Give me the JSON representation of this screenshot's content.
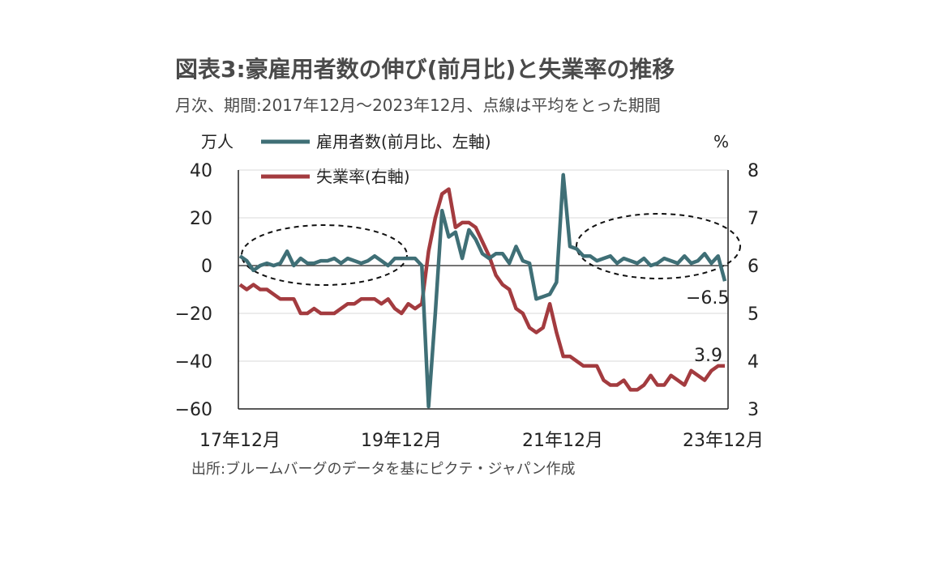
{
  "title": "図表3:豪雇用者数の伸び(前月比)と失業率の推移",
  "subtitle": "月次、期間:2017年12月～2023年12月、点線は平均をとった期間",
  "source": "出所:ブルームバーグのデータを基にピクテ・ジャパン作成",
  "colors": {
    "employment": "#3f6f76",
    "unemployment": "#a33b3f"
  },
  "chart_data": {
    "type": "line",
    "left_unit": "万人",
    "right_unit": "%",
    "x_ticks": [
      "17年12月",
      "19年12月",
      "21年12月",
      "23年12月"
    ],
    "left_axis": {
      "ylim": [
        -60,
        40
      ],
      "ticks": [
        "40",
        "20",
        "0",
        "−20",
        "−40",
        "−60"
      ]
    },
    "right_axis": {
      "ylim": [
        3,
        8
      ],
      "ticks": [
        "8",
        "7",
        "6",
        "5",
        "4",
        "3"
      ]
    },
    "legend": [
      "雇用者数(前月比、左軸)",
      "失業率(右軸)"
    ],
    "annotations": {
      "last_employment": "−6.5",
      "last_unemployment": "3.9"
    },
    "series": [
      {
        "name": "雇用者数(前月比、左軸)",
        "axis": "left",
        "values": [
          4,
          2,
          -2,
          0,
          1,
          0,
          1,
          6,
          0,
          3,
          1,
          1,
          2,
          2,
          3,
          1,
          3,
          2,
          1,
          2,
          4,
          2,
          0,
          3,
          3,
          3,
          3,
          0,
          -59,
          -20,
          23,
          12,
          14,
          3,
          15,
          11,
          5,
          3,
          5,
          5,
          1,
          8,
          2,
          1,
          -14,
          -13,
          -12,
          -7,
          38,
          8,
          7,
          4,
          4,
          2,
          3,
          4,
          1,
          3,
          2,
          1,
          3,
          0,
          1,
          3,
          2,
          1,
          4,
          1,
          2,
          5,
          1,
          4,
          -6.5
        ]
      },
      {
        "name": "失業率(右軸)",
        "axis": "right",
        "values": [
          5.6,
          5.5,
          5.6,
          5.5,
          5.5,
          5.4,
          5.3,
          5.3,
          5.3,
          5.0,
          5.0,
          5.1,
          5.0,
          5.0,
          5.0,
          5.1,
          5.2,
          5.2,
          5.3,
          5.3,
          5.3,
          5.2,
          5.3,
          5.1,
          5.0,
          5.2,
          5.1,
          5.2,
          6.3,
          7.0,
          7.5,
          7.6,
          6.8,
          6.9,
          6.9,
          6.8,
          6.5,
          6.2,
          5.8,
          5.6,
          5.5,
          5.1,
          5.0,
          4.7,
          4.6,
          4.7,
          5.2,
          4.6,
          4.1,
          4.1,
          4.0,
          3.9,
          3.9,
          3.9,
          3.6,
          3.5,
          3.5,
          3.6,
          3.4,
          3.4,
          3.5,
          3.7,
          3.5,
          3.5,
          3.7,
          3.6,
          3.5,
          3.8,
          3.7,
          3.6,
          3.8,
          3.9,
          3.9
        ]
      }
    ]
  }
}
